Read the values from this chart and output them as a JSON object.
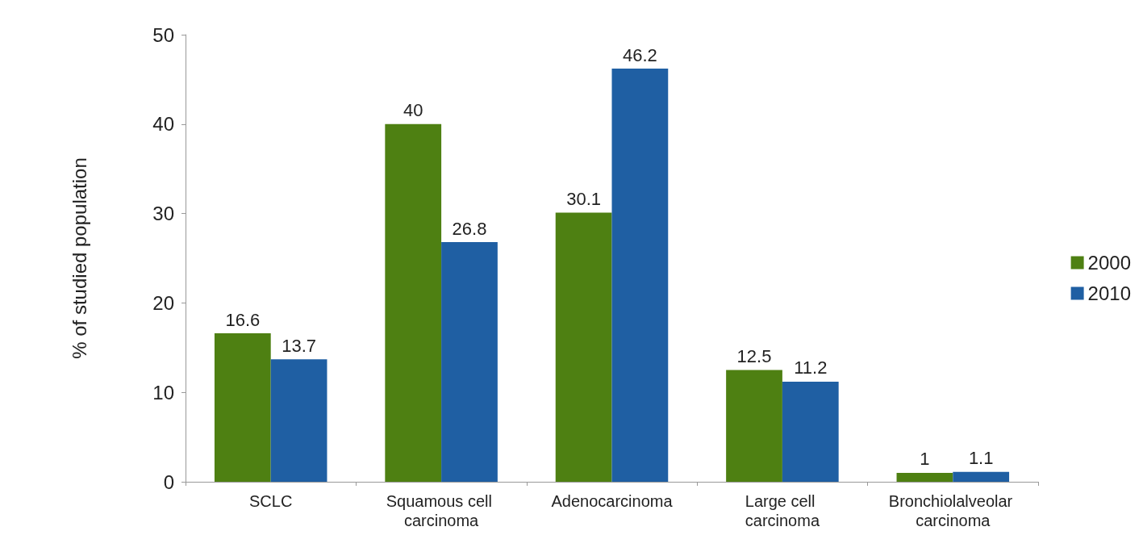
{
  "chart_data": {
    "type": "bar",
    "ylabel": "% of studied population",
    "categories": [
      "SCLC",
      "Squamous cell carcinoma",
      "Adenocarcinoma",
      "Large cell carcinoma",
      "Bronchiolalveolar carcinoma"
    ],
    "series": [
      {
        "name": "2000",
        "color": "#4e8012",
        "values": [
          16.6,
          40,
          30.1,
          12.5,
          1
        ]
      },
      {
        "name": "2010",
        "color": "#1f5fa3",
        "values": [
          13.7,
          26.8,
          46.2,
          11.2,
          1.1
        ]
      }
    ],
    "ylim": [
      0,
      50
    ],
    "yticks": [
      0,
      10,
      20,
      30,
      40,
      50
    ],
    "grid": false,
    "legend": "right",
    "data_labels": true
  }
}
